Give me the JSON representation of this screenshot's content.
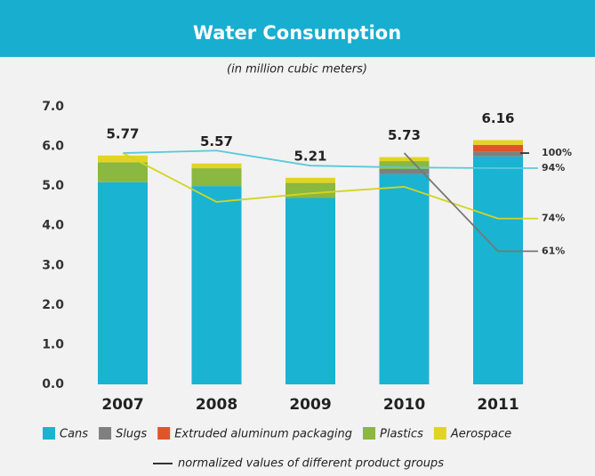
{
  "chart_data": {
    "type": "bar",
    "stacked": true,
    "title": "Water Consumption",
    "subtitle": "(in million cubic meters)",
    "categories": [
      "2007",
      "2008",
      "2009",
      "2010",
      "2011"
    ],
    "series": [
      {
        "name": "Cans",
        "color": "#1ab3d1",
        "values": [
          5.1,
          5.0,
          4.7,
          5.3,
          5.75
        ]
      },
      {
        "name": "Slugs",
        "color": "#7f7f7f",
        "values": [
          0,
          0,
          0,
          0.13,
          0.12
        ]
      },
      {
        "name": "Extruded aluminum packaging",
        "color": "#e0542a",
        "values": [
          0,
          0,
          0,
          0,
          0.17
        ]
      },
      {
        "name": "Plastics",
        "color": "#8ab840",
        "values": [
          0.5,
          0.45,
          0.38,
          0.2,
          0
        ]
      },
      {
        "name": "Aerospace",
        "color": "#e2d425",
        "values": [
          0.17,
          0.12,
          0.13,
          0.1,
          0.12
        ]
      }
    ],
    "totals": [
      5.77,
      5.57,
      5.21,
      5.73,
      6.16
    ],
    "ylim": [
      0,
      7
    ],
    "yticks": [
      {
        "value": 0,
        "label": "0.0"
      },
      {
        "value": 1,
        "label": "1.0"
      },
      {
        "value": 2,
        "label": "2.0"
      },
      {
        "value": 3,
        "label": "3.0"
      },
      {
        "value": 4,
        "label": "4.0"
      },
      {
        "value": 5,
        "label": "5.0"
      },
      {
        "value": 6,
        "label": "6.0"
      },
      {
        "value": 7,
        "label": "7.0"
      }
    ],
    "y2lim": [
      8.1,
      118.4
    ],
    "lines": [
      {
        "axis": "y2",
        "color": "#5bc8dc",
        "values": [
          100,
          101,
          95,
          94.3,
          94
        ],
        "value_labels": [
          null,
          null,
          null,
          null,
          "94%"
        ]
      },
      {
        "axis": "y2",
        "color": "#d4d422",
        "values": [
          100,
          80.6,
          84,
          86.6,
          74
        ],
        "value_labels": [
          null,
          null,
          null,
          null,
          "74%"
        ]
      },
      {
        "axis": "y2",
        "color": "#777777",
        "values": [
          null,
          null,
          null,
          100,
          61
        ],
        "value_labels": [
          null,
          null,
          null,
          null,
          "61%"
        ]
      },
      {
        "axis": "y2",
        "color": "#333333",
        "values": [
          null,
          null,
          null,
          null,
          100
        ],
        "value_labels": [
          null,
          null,
          null,
          null,
          "100%"
        ]
      }
    ],
    "line_legend": "normalized values of different product groups"
  }
}
